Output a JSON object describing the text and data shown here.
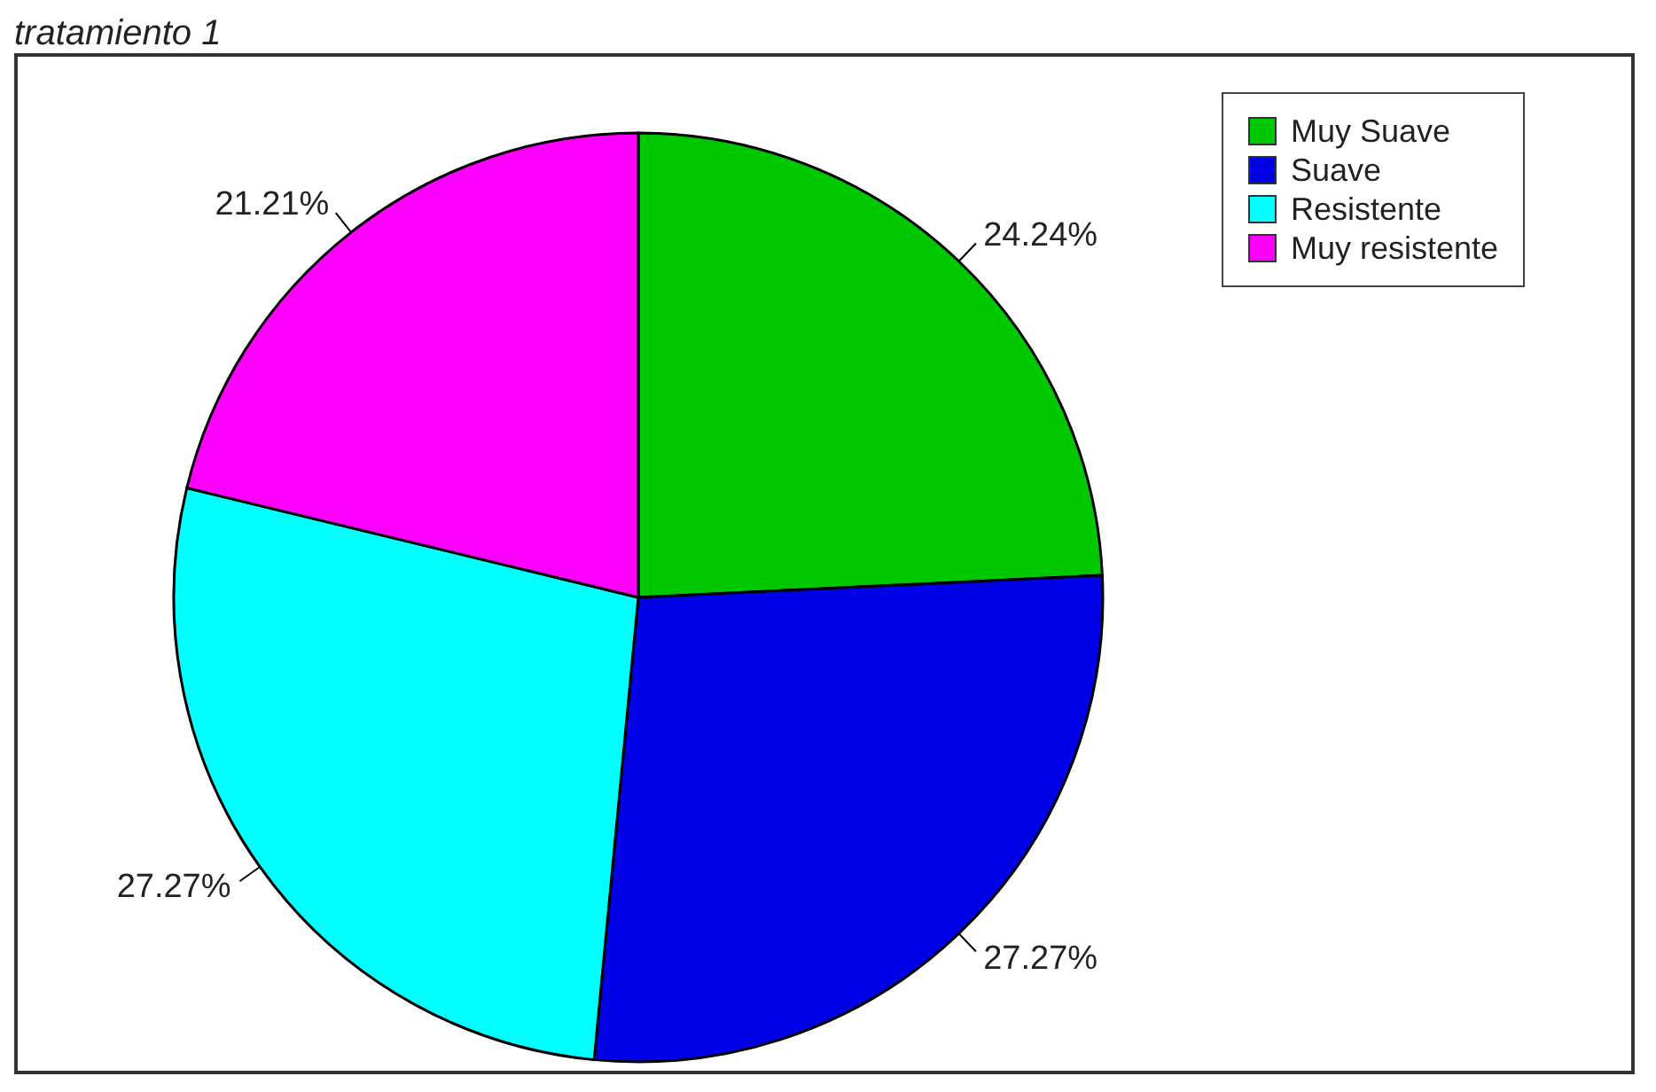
{
  "chart_data": {
    "type": "pie",
    "title": "tratamiento 1",
    "categories": [
      "Muy Suave",
      "Suave",
      "Resistente",
      "Muy resistente"
    ],
    "values": [
      24.24,
      27.27,
      27.27,
      21.21
    ],
    "colors": [
      "#00c800",
      "#0000e6",
      "#00ffff",
      "#ff00ff"
    ],
    "value_labels": [
      "24.24%",
      "27.27%",
      "27.27%",
      "21.21%"
    ],
    "legend": "top right"
  }
}
